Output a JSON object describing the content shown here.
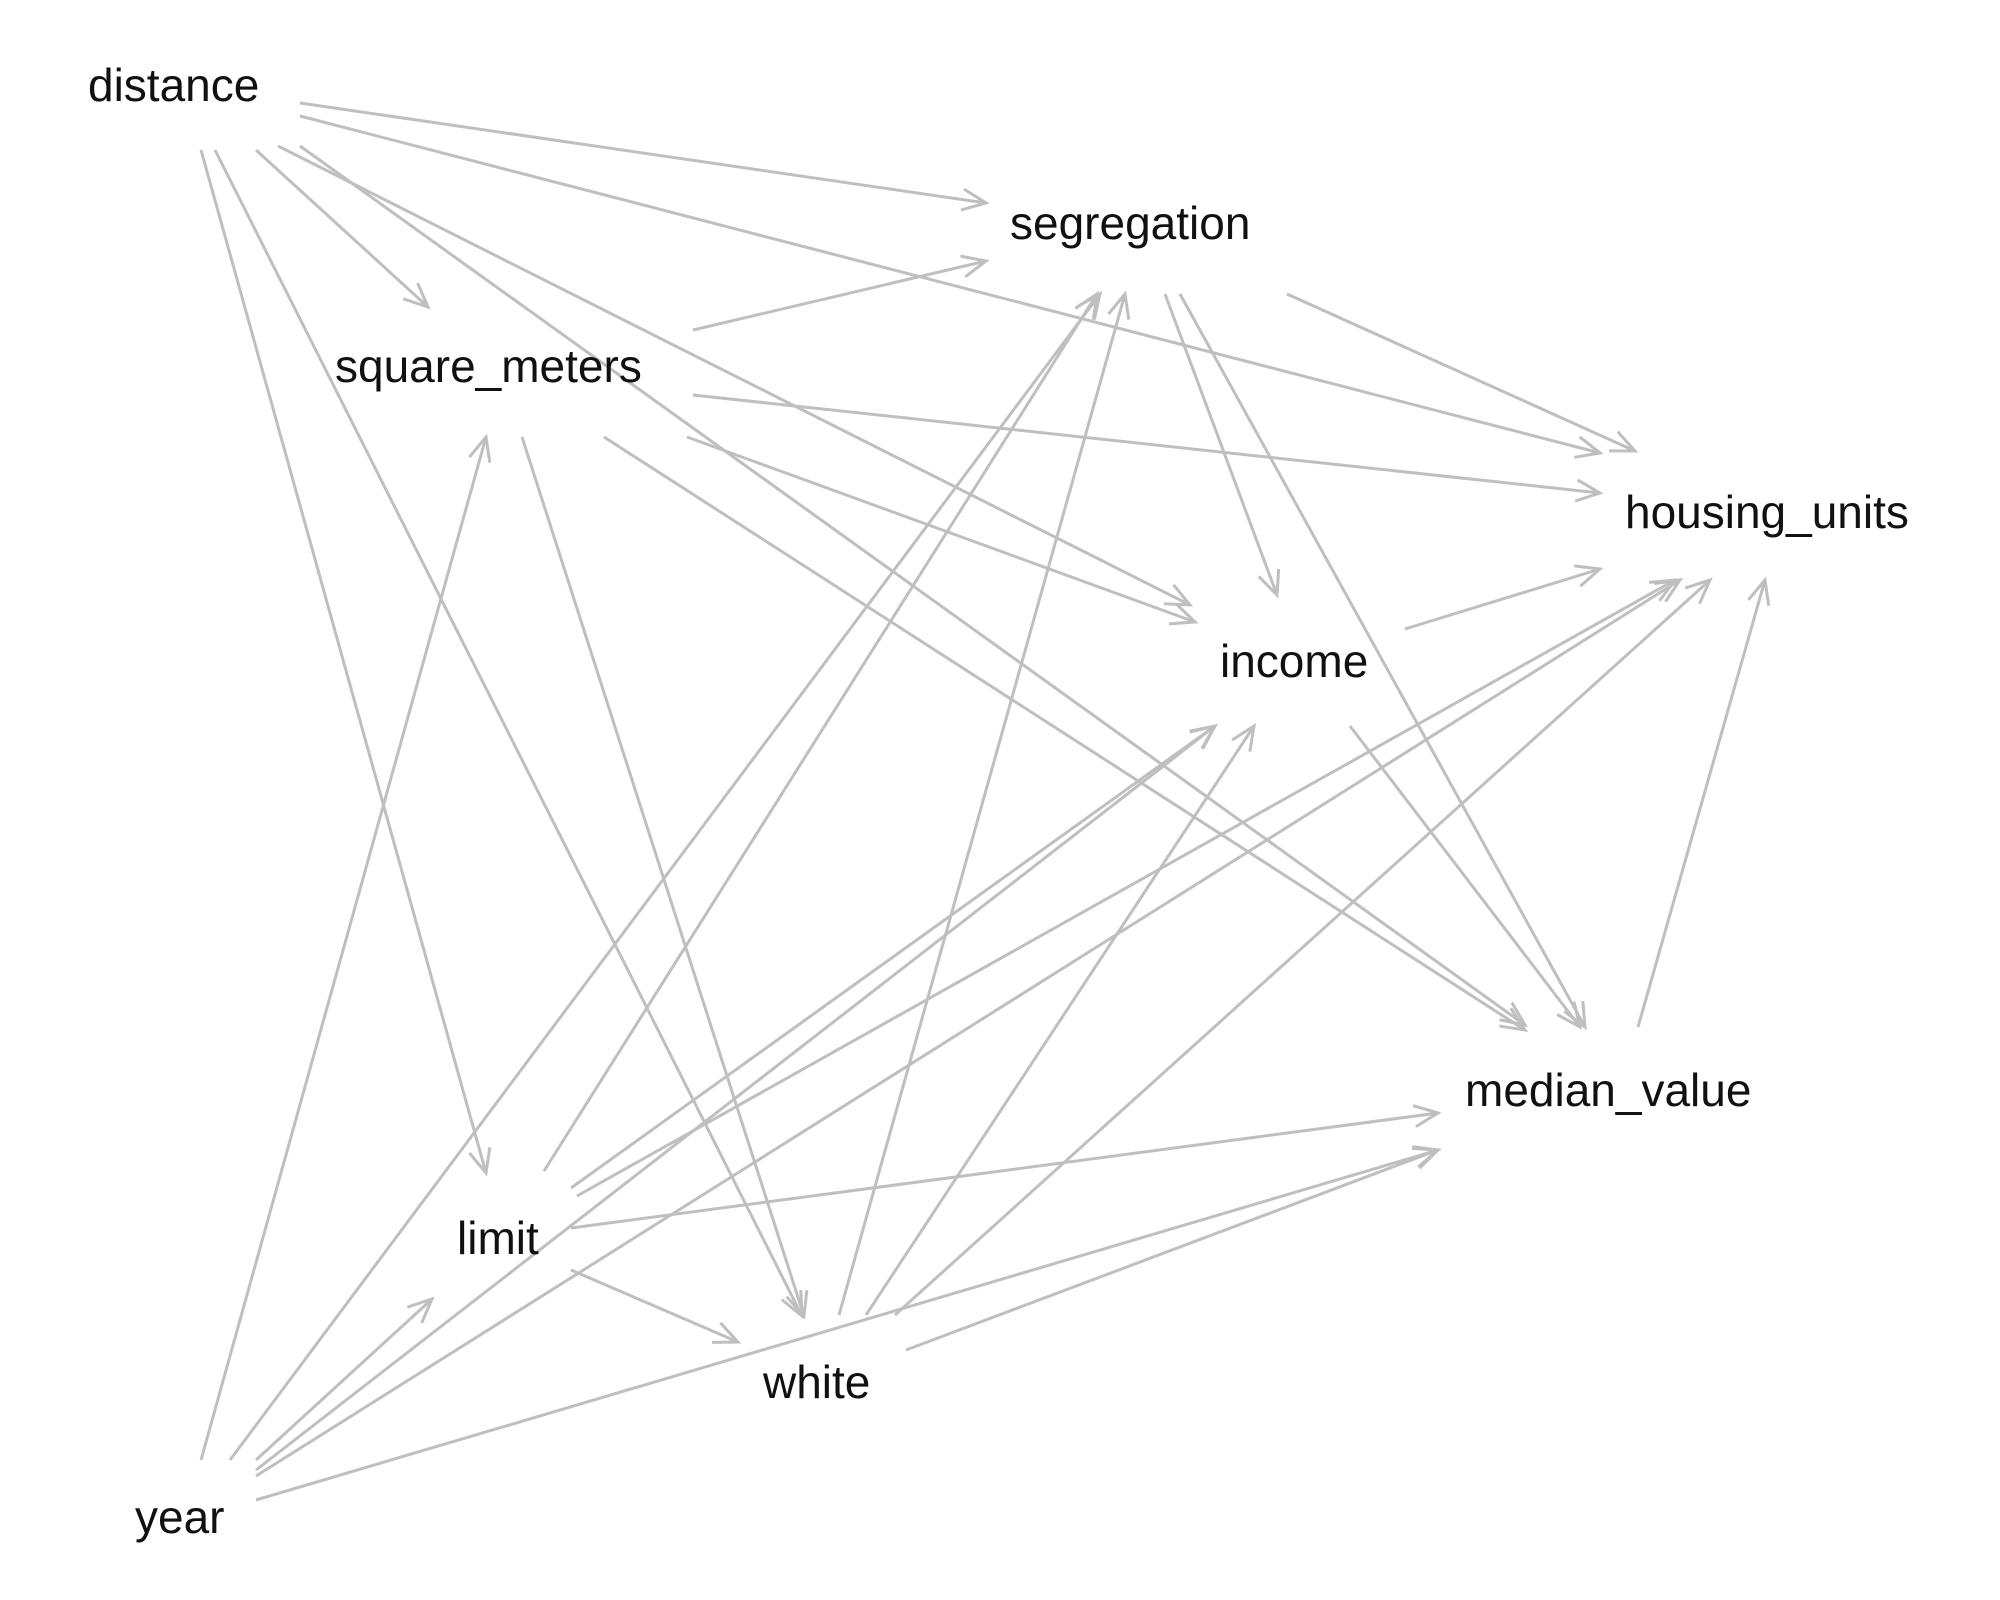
{
  "diagram": {
    "type": "directed-acyclic-graph",
    "edge_color": "#bfbfbf",
    "label_color": "#111111",
    "background": "#ffffff",
    "nodes": [
      {
        "id": "distance",
        "label": "distance"
      },
      {
        "id": "segregation",
        "label": "segregation"
      },
      {
        "id": "square_meters",
        "label": "square_meters"
      },
      {
        "id": "housing_units",
        "label": "housing_units"
      },
      {
        "id": "income",
        "label": "income"
      },
      {
        "id": "median_value",
        "label": "median_value"
      },
      {
        "id": "limit",
        "label": "limit"
      },
      {
        "id": "white",
        "label": "white"
      },
      {
        "id": "year",
        "label": "year"
      }
    ],
    "edges": [
      {
        "from": "distance",
        "to": "segregation"
      },
      {
        "from": "distance",
        "to": "housing_units"
      },
      {
        "from": "distance",
        "to": "square_meters"
      },
      {
        "from": "distance",
        "to": "income"
      },
      {
        "from": "distance",
        "to": "median_value"
      },
      {
        "from": "distance",
        "to": "limit"
      },
      {
        "from": "distance",
        "to": "white"
      },
      {
        "from": "square_meters",
        "to": "segregation"
      },
      {
        "from": "square_meters",
        "to": "housing_units"
      },
      {
        "from": "square_meters",
        "to": "income"
      },
      {
        "from": "square_meters",
        "to": "median_value"
      },
      {
        "from": "square_meters",
        "to": "white"
      },
      {
        "from": "segregation",
        "to": "housing_units"
      },
      {
        "from": "segregation",
        "to": "income"
      },
      {
        "from": "segregation",
        "to": "median_value"
      },
      {
        "from": "income",
        "to": "housing_units"
      },
      {
        "from": "income",
        "to": "median_value"
      },
      {
        "from": "median_value",
        "to": "housing_units"
      },
      {
        "from": "limit",
        "to": "segregation"
      },
      {
        "from": "limit",
        "to": "income"
      },
      {
        "from": "limit",
        "to": "housing_units"
      },
      {
        "from": "limit",
        "to": "median_value"
      },
      {
        "from": "limit",
        "to": "white"
      },
      {
        "from": "white",
        "to": "segregation"
      },
      {
        "from": "white",
        "to": "income"
      },
      {
        "from": "white",
        "to": "housing_units"
      },
      {
        "from": "white",
        "to": "median_value"
      },
      {
        "from": "year",
        "to": "square_meters"
      },
      {
        "from": "year",
        "to": "segregation"
      },
      {
        "from": "year",
        "to": "limit"
      },
      {
        "from": "year",
        "to": "income"
      },
      {
        "from": "year",
        "to": "housing_units"
      },
      {
        "from": "year",
        "to": "median_value"
      }
    ]
  }
}
